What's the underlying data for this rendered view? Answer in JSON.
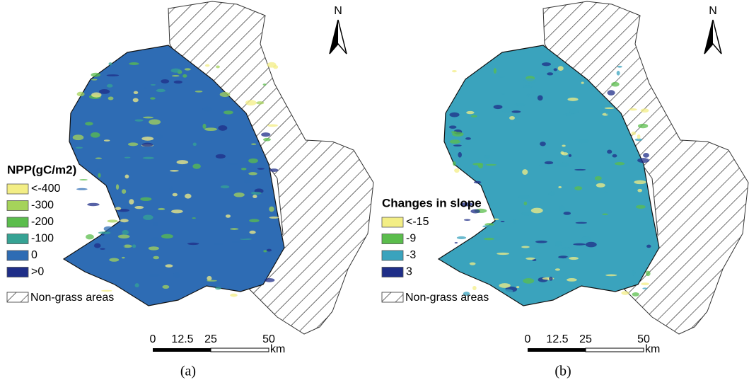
{
  "panels": [
    {
      "legend": {
        "title": "NPP(gC/m2)",
        "items": [
          {
            "label": "<-400",
            "color": "#f3ee85"
          },
          {
            "label": "-300",
            "color": "#a5d35a"
          },
          {
            "label": "-200",
            "color": "#5bbd4c"
          },
          {
            "label": "-100",
            "color": "#36a394"
          },
          {
            "label": "0",
            "color": "#2e6cb4"
          },
          {
            "label": ">0",
            "color": "#1f2e88"
          }
        ],
        "non_grass": "Non-grass areas"
      },
      "scale": {
        "ticks": [
          "0",
          "12.5",
          "25",
          "50"
        ],
        "unit": "km"
      },
      "north": "N",
      "caption": "(a)"
    },
    {
      "legend": {
        "title": "Changes in slope",
        "items": [
          {
            "label": "<-15",
            "color": "#f3ee85"
          },
          {
            "label": "-9",
            "color": "#5bbd4c"
          },
          {
            "label": "-3",
            "color": "#3aa3bd"
          },
          {
            "label": "3",
            "color": "#1f2e88"
          }
        ],
        "non_grass": "Non-grass areas"
      },
      "scale": {
        "ticks": [
          "0",
          "12.5",
          "25",
          "50"
        ],
        "unit": "km"
      },
      "north": "N",
      "caption": "(b)"
    }
  ]
}
